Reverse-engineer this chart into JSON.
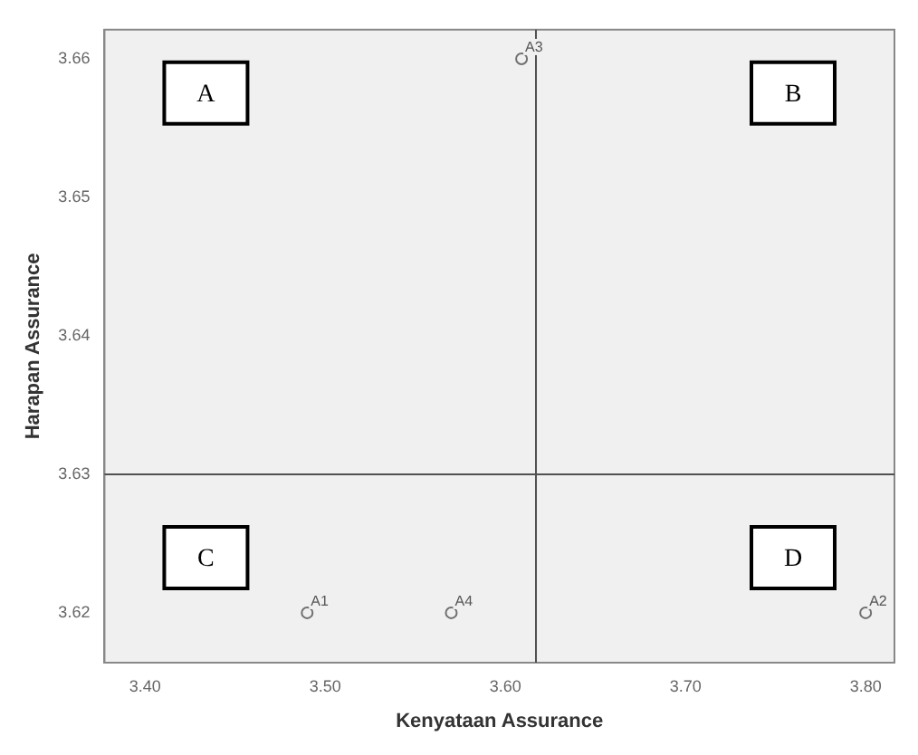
{
  "chart_data": {
    "type": "scatter",
    "xlabel": "Kenyataan Assurance",
    "ylabel": "Harapan Assurance",
    "x": [
      3.49,
      3.8,
      3.609,
      3.57
    ],
    "values": [
      3.62,
      3.62,
      3.66,
      3.62
    ],
    "color": "#707070",
    "marker": "circle",
    "grid": false,
    "legend": false,
    "xlim": [
      3.3775,
      3.816
    ],
    "xticks": [
      {
        "value": 3.4,
        "label": "3.40"
      },
      {
        "value": 3.5,
        "label": "3.50"
      },
      {
        "value": 3.6,
        "label": "3.60"
      },
      {
        "value": 3.7,
        "label": "3.70"
      },
      {
        "value": 3.8,
        "label": "3.80"
      }
    ],
    "ylim": [
      3.6164,
      3.6621
    ],
    "yticks": [
      {
        "value": 3.62,
        "label": "3.62"
      },
      {
        "value": 3.63,
        "label": "3.63"
      },
      {
        "value": 3.64,
        "label": "3.64"
      },
      {
        "value": 3.65,
        "label": "3.65"
      },
      {
        "value": 3.66,
        "label": "3.66"
      }
    ],
    "ref_lines": [
      {
        "axis": "x",
        "value": 3.617,
        "color": "#505050"
      },
      {
        "axis": "y",
        "value": 3.63,
        "color": "#505050"
      }
    ],
    "annotations": [
      {
        "text": "A1",
        "x": 3.49,
        "y": 3.62
      },
      {
        "text": "A2",
        "x": 3.8,
        "y": 3.62
      },
      {
        "text": "A3",
        "x": 3.609,
        "y": 3.66
      },
      {
        "text": "A4",
        "x": 3.57,
        "y": 3.62
      },
      "A",
      "B",
      "C",
      "D"
    ]
  }
}
